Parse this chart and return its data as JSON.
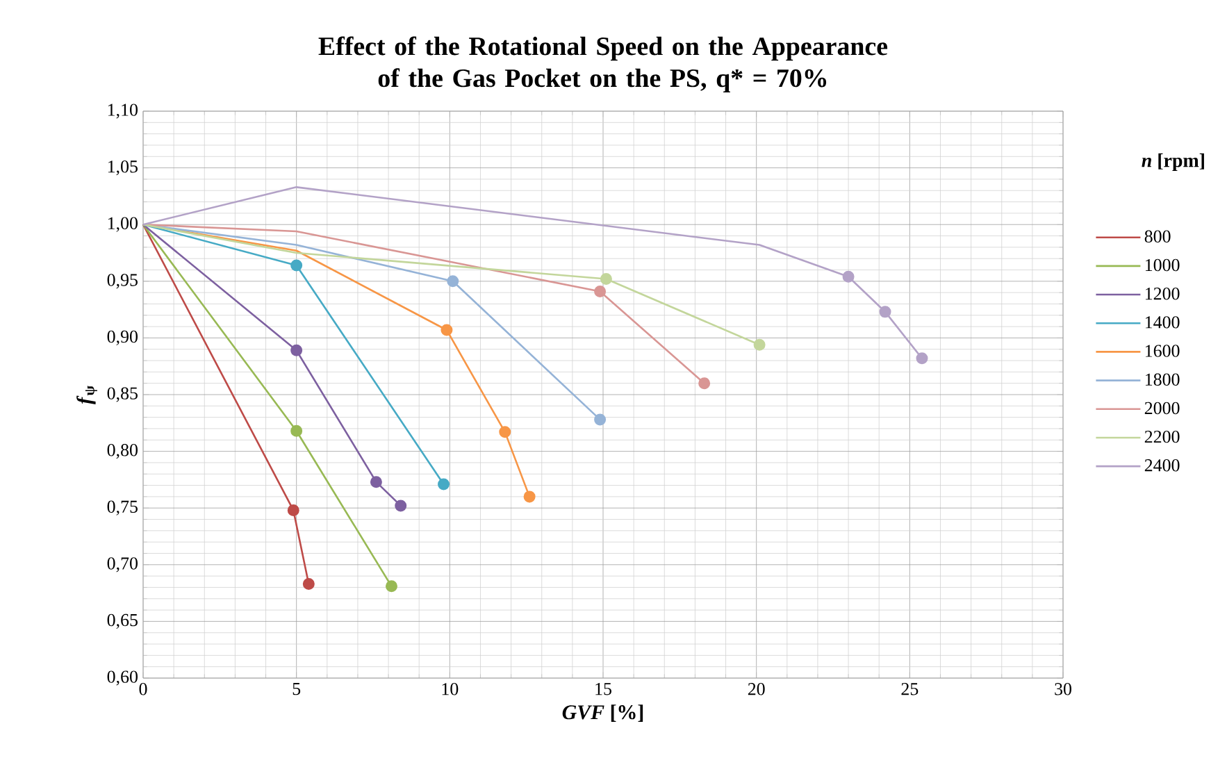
{
  "chart_data": {
    "type": "line",
    "title": "Effect of the Rotational Speed on the Appearance of the Gas Pocket on the PS,  q* = 70%",
    "xlabel": "*GVF* [%]",
    "ylabel": "*f*$_{ψ}$",
    "legend_title": "*n* [rpm]",
    "xlim": [
      0,
      30
    ],
    "xticks": [
      0,
      5,
      10,
      15,
      20,
      25,
      30
    ],
    "ylim": [
      0.6,
      1.1
    ],
    "yticks": [
      {
        "value": 0.6,
        "label": "0,60"
      },
      {
        "value": 0.65,
        "label": "0,65"
      },
      {
        "value": 0.7,
        "label": "0,70"
      },
      {
        "value": 0.75,
        "label": "0,75"
      },
      {
        "value": 0.8,
        "label": "0,80"
      },
      {
        "value": 0.85,
        "label": "0,85"
      },
      {
        "value": 0.9,
        "label": "0,90"
      },
      {
        "value": 0.95,
        "label": "0,95"
      },
      {
        "value": 1.0,
        "label": "1,00"
      },
      {
        "value": 1.05,
        "label": "1,05"
      },
      {
        "value": 1.1,
        "label": "1,10"
      }
    ],
    "grid": true,
    "legend": "right",
    "marker": "circle",
    "series": [
      {
        "name": "800",
        "color": "#be4b48",
        "marker": "none",
        "x": [
          0,
          4.9,
          5.4
        ],
        "values": [
          1.0,
          0.748,
          0.683
        ]
      },
      {
        "name": "1000",
        "color": "#98b954",
        "marker": "none",
        "x": [
          0,
          5.0,
          8.1
        ],
        "values": [
          1.0,
          0.818,
          0.681
        ]
      },
      {
        "name": "1200",
        "color": "#7d60a0",
        "marker": "none",
        "x": [
          0,
          5.0,
          7.6,
          8.4
        ],
        "values": [
          1.0,
          0.889,
          0.773,
          0.752
        ]
      },
      {
        "name": "1400",
        "color": "#46aac5",
        "marker": "none",
        "x": [
          0,
          5.0,
          9.8
        ],
        "values": [
          1.0,
          0.964,
          0.771
        ]
      },
      {
        "name": "1600",
        "color": "#f79646",
        "marker": "none",
        "x": [
          0,
          5.0,
          9.9,
          11.8,
          12.6
        ],
        "values": [
          1.0,
          0.977,
          0.907,
          0.817,
          0.76
        ]
      },
      {
        "name": "1800",
        "color": "#95b3d7",
        "marker": "none",
        "x": [
          0,
          5.0,
          10.1,
          14.9
        ],
        "values": [
          1.0,
          0.982,
          0.95,
          0.828
        ]
      },
      {
        "name": "2000",
        "color": "#d99694",
        "marker": "none",
        "x": [
          0,
          5.0,
          14.9,
          18.3
        ],
        "values": [
          1.0,
          0.994,
          0.941,
          0.86
        ]
      },
      {
        "name": "2200",
        "color": "#c3d69b",
        "marker": "none",
        "x": [
          0,
          5.0,
          15.1,
          20.1
        ],
        "values": [
          1.0,
          0.975,
          0.952,
          0.894
        ]
      },
      {
        "name": "2400",
        "color": "#b3a2c7",
        "marker": "none",
        "x": [
          0,
          5.0,
          20.1,
          23.0,
          24.2,
          25.4
        ],
        "values": [
          1.0,
          1.033,
          0.982,
          0.954,
          0.923,
          0.882
        ]
      },
      {
        "type": "scatter",
        "color": "#be4b48",
        "x": [
          4.9,
          5.4
        ],
        "values": [
          0.748,
          0.683
        ]
      },
      {
        "type": "scatter",
        "color": "#98b954",
        "x": [
          5.0,
          8.1
        ],
        "values": [
          0.818,
          0.681
        ]
      },
      {
        "type": "scatter",
        "color": "#7d60a0",
        "x": [
          5.0,
          7.6,
          8.4
        ],
        "values": [
          0.889,
          0.773,
          0.752
        ]
      },
      {
        "type": "scatter",
        "color": "#46aac5",
        "x": [
          5.0,
          9.8
        ],
        "values": [
          0.964,
          0.771
        ]
      },
      {
        "type": "scatter",
        "color": "#f79646",
        "x": [
          9.9,
          11.8,
          12.6
        ],
        "values": [
          0.907,
          0.817,
          0.76
        ]
      },
      {
        "type": "scatter",
        "color": "#95b3d7",
        "x": [
          10.1,
          14.9
        ],
        "values": [
          0.95,
          0.828
        ]
      },
      {
        "type": "scatter",
        "color": "#d99694",
        "x": [
          14.9,
          18.3
        ],
        "values": [
          0.941,
          0.86
        ]
      },
      {
        "type": "scatter",
        "color": "#c3d69b",
        "x": [
          15.1,
          20.1
        ],
        "values": [
          0.952,
          0.894
        ]
      },
      {
        "type": "scatter",
        "color": "#b3a2c7",
        "x": [
          23.0,
          24.2,
          25.4
        ],
        "values": [
          0.954,
          0.923,
          0.882
        ]
      }
    ]
  }
}
